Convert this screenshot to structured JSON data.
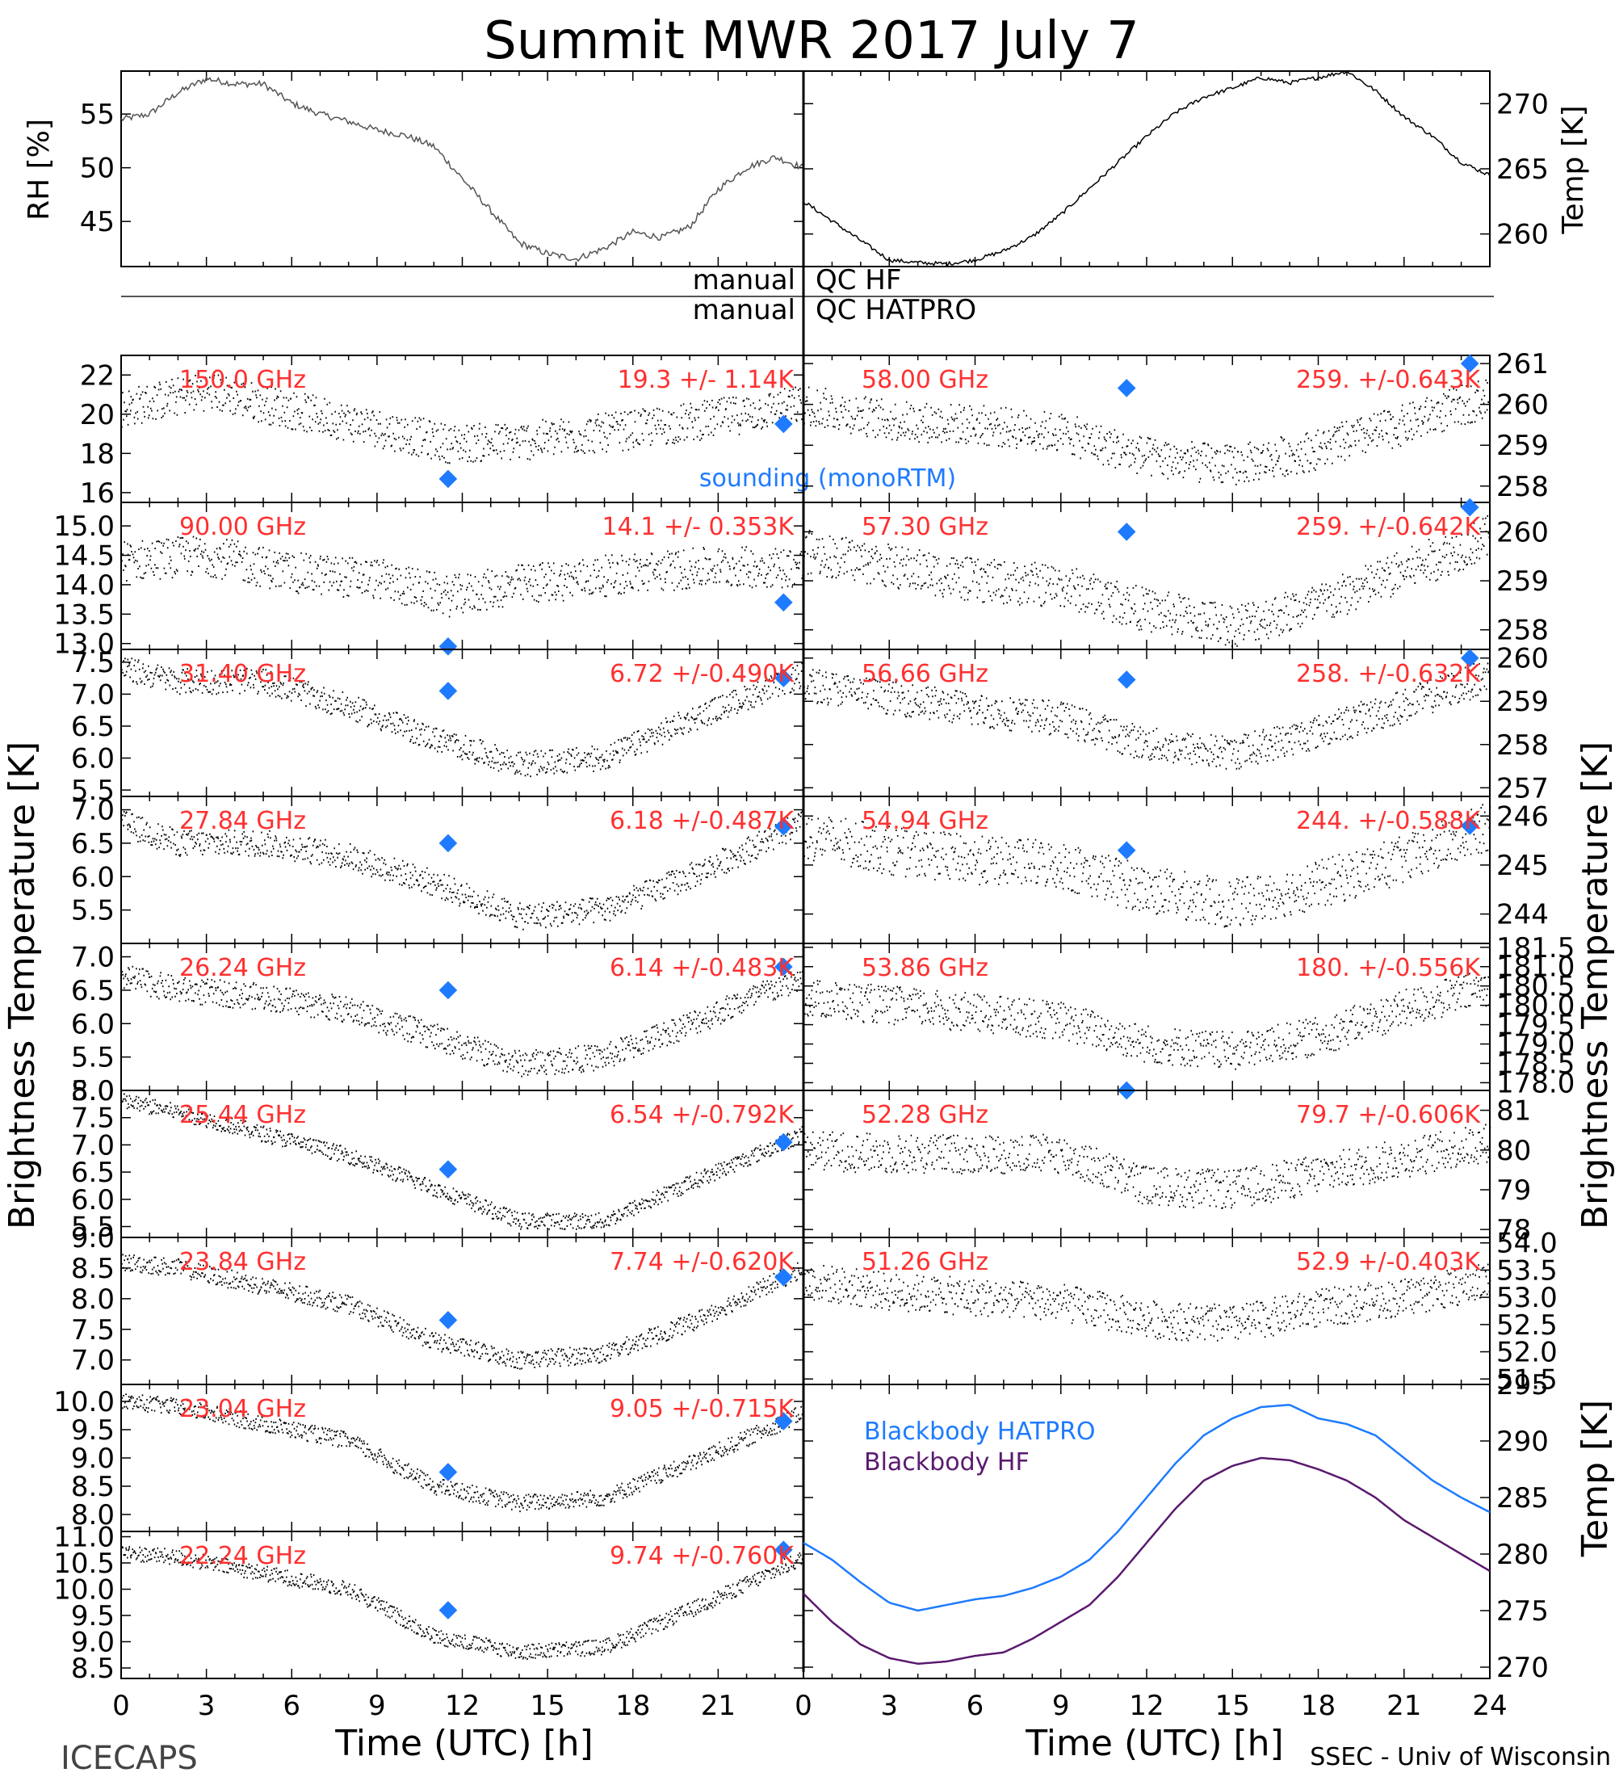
{
  "title": "Summit MWR 2017 July  7",
  "top_panels": {
    "left": {
      "ylabel": "RH [%]"
    },
    "right": {
      "ylabel": "Temp [K]"
    }
  },
  "qc": {
    "rows": [
      {
        "left": "manual",
        "right": "QC HF"
      },
      {
        "left": "manual",
        "right": "QC HATPRO"
      }
    ]
  },
  "axis_labels": {
    "brightness_left": "Brightness Temperature [K]",
    "brightness_right": "Brightness Temperature [K]",
    "bb_right": "Temp [K]",
    "xlabel_left": "Time (UTC) [h]",
    "xlabel_right": "Time (UTC) [h]"
  },
  "legend": {
    "sounding": "sounding (monoRTM)",
    "bb_hatpro": "Blackbody HATPRO",
    "bb_hf": "Blackbody HF"
  },
  "footer": {
    "left": "ICECAPS",
    "right": "SSEC - Univ of Wisconsin"
  },
  "colors": {
    "data": "#000000",
    "label": "#ff3030",
    "sounding": "#1e7bff",
    "bb_hatpro": "#1e7bff",
    "bb_hf": "#5a1a6e"
  },
  "chart_data": [
    {
      "type": "line",
      "panel": "rh",
      "ylabel": "RH [%]",
      "xlim": [
        0,
        24
      ],
      "ylim": [
        40.8,
        59
      ],
      "yticks": [
        45,
        50,
        55
      ],
      "x": [
        0,
        1,
        2,
        3,
        4,
        5,
        6,
        7,
        8,
        9,
        10,
        11,
        12,
        13,
        14,
        15,
        16,
        17,
        18,
        19,
        20,
        21,
        22,
        23,
        24
      ],
      "y": [
        54.5,
        55,
        57,
        58.3,
        57.8,
        57.8,
        56,
        55,
        54.3,
        53.5,
        53,
        52,
        49,
        46,
        43,
        42,
        41.5,
        42.5,
        44,
        43.5,
        44.5,
        48,
        50,
        51,
        50
      ]
    },
    {
      "type": "line",
      "panel": "temp",
      "ylabel": "Temp [K]",
      "xlim": [
        0,
        24
      ],
      "ylim": [
        257.5,
        272.5
      ],
      "yticks": [
        260,
        265,
        270
      ],
      "x": [
        0,
        1,
        2,
        3,
        4,
        5,
        6,
        7,
        8,
        9,
        10,
        11,
        12,
        13,
        14,
        15,
        16,
        17,
        18,
        19,
        20,
        21,
        22,
        23,
        24
      ],
      "y": [
        262.5,
        261,
        259.5,
        258,
        257.8,
        257.7,
        258,
        258.7,
        259.8,
        261.5,
        263.5,
        265.5,
        267.5,
        269.3,
        270.5,
        271.2,
        272,
        271.6,
        272,
        272.5,
        271,
        269,
        267.5,
        265.5,
        264.5
      ]
    },
    {
      "type": "scatter",
      "panel": "left",
      "channel": "150.0 GHz",
      "stat": "19.3 +/- 1.14K",
      "ylim": [
        15.5,
        23
      ],
      "yticks": [
        16,
        18,
        20,
        22
      ],
      "xlim": [
        0,
        24
      ],
      "trend": {
        "x": [
          0,
          3,
          6,
          9,
          11.5,
          14,
          18,
          21,
          24
        ],
        "y": [
          20.3,
          21.2,
          20.2,
          19.3,
          18.5,
          18.6,
          19.2,
          19.8,
          20.5
        ]
      },
      "noise": 1.0,
      "sounding": [
        [
          11.5,
          16.7
        ],
        [
          23.3,
          19.5
        ]
      ]
    },
    {
      "type": "scatter",
      "panel": "left",
      "channel": "90.00 GHz",
      "stat": "14.1 +/- 0.353K",
      "ylim": [
        12.9,
        15.4
      ],
      "yticks": [
        13.0,
        13.5,
        14.0,
        14.5,
        15.0
      ],
      "xlim": [
        0,
        24
      ],
      "trend": {
        "x": [
          0,
          3,
          6,
          9,
          11.5,
          14,
          18,
          21,
          24
        ],
        "y": [
          14.4,
          14.5,
          14.2,
          14.1,
          13.8,
          14.0,
          14.2,
          14.3,
          14.3
        ]
      },
      "noise": 0.35,
      "sounding": [
        [
          11.5,
          12.95
        ],
        [
          23.3,
          13.7
        ]
      ]
    },
    {
      "type": "scatter",
      "panel": "left",
      "channel": "31.40 GHz",
      "stat": "6.72 +/-0.490K",
      "ylim": [
        5.4,
        7.7
      ],
      "yticks": [
        5.5,
        6.0,
        6.5,
        7.0,
        7.5
      ],
      "xlim": [
        0,
        24
      ],
      "trend": {
        "x": [
          0,
          2,
          5,
          8,
          11,
          14,
          17,
          20,
          24
        ],
        "y": [
          7.4,
          7.2,
          7.2,
          6.8,
          6.3,
          5.9,
          6.0,
          6.6,
          7.3
        ]
      },
      "noise": 0.2,
      "sounding": [
        [
          11.5,
          7.05
        ],
        [
          23.3,
          7.25
        ]
      ]
    },
    {
      "type": "scatter",
      "panel": "left",
      "channel": "27.84 GHz",
      "stat": "6.18 +/-0.487K",
      "ylim": [
        5.0,
        7.2
      ],
      "yticks": [
        5.5,
        6.0,
        6.5,
        7.0
      ],
      "xlim": [
        0,
        24
      ],
      "trend": {
        "x": [
          0,
          2,
          5,
          8,
          11,
          14,
          17,
          20,
          24
        ],
        "y": [
          6.8,
          6.5,
          6.5,
          6.3,
          5.9,
          5.4,
          5.5,
          6.0,
          6.8
        ]
      },
      "noise": 0.2,
      "sounding": [
        [
          11.5,
          6.5
        ],
        [
          23.3,
          6.75
        ]
      ]
    },
    {
      "type": "scatter",
      "panel": "left",
      "channel": "26.24 GHz",
      "stat": "6.14 +/-0.483K",
      "ylim": [
        5.0,
        7.2
      ],
      "yticks": [
        5.0,
        5.5,
        6.0,
        6.5,
        7.0
      ],
      "xlim": [
        0,
        24
      ],
      "trend": {
        "x": [
          0,
          2,
          5,
          8,
          11,
          14,
          17,
          20,
          24
        ],
        "y": [
          6.7,
          6.5,
          6.4,
          6.2,
          5.8,
          5.4,
          5.5,
          6.0,
          6.7
        ]
      },
      "noise": 0.2,
      "sounding": [
        [
          11.5,
          6.5
        ],
        [
          23.3,
          6.85
        ]
      ]
    },
    {
      "type": "scatter",
      "panel": "left",
      "channel": "25.44 GHz",
      "stat": "6.54 +/-0.792K",
      "ylim": [
        5.3,
        8.0
      ],
      "yticks": [
        5.5,
        6.0,
        6.5,
        7.0,
        7.5,
        8.0
      ],
      "xlim": [
        0,
        24
      ],
      "trend": {
        "x": [
          0,
          2,
          5,
          8,
          11,
          14,
          17,
          20,
          24
        ],
        "y": [
          7.8,
          7.6,
          7.2,
          6.8,
          6.2,
          5.6,
          5.6,
          6.3,
          7.2
        ]
      },
      "noise": 0.15,
      "sounding": [
        [
          11.5,
          6.55
        ],
        [
          23.3,
          7.05
        ]
      ]
    },
    {
      "type": "scatter",
      "panel": "left",
      "channel": "23.84 GHz",
      "stat": "7.74 +/-0.620K",
      "ylim": [
        6.6,
        9.0
      ],
      "yticks": [
        7.0,
        7.5,
        8.0,
        8.5,
        9.0
      ],
      "xlim": [
        0,
        24
      ],
      "trend": {
        "x": [
          0,
          2,
          5,
          8,
          11,
          14,
          17,
          20,
          24
        ],
        "y": [
          8.6,
          8.5,
          8.2,
          7.9,
          7.3,
          7.0,
          7.1,
          7.6,
          8.5
        ]
      },
      "noise": 0.15,
      "sounding": [
        [
          11.5,
          7.65
        ],
        [
          23.3,
          8.35
        ]
      ]
    },
    {
      "type": "scatter",
      "panel": "left",
      "channel": "23.04 GHz",
      "stat": "9.05 +/-0.715K",
      "ylim": [
        7.7,
        10.3
      ],
      "yticks": [
        8.0,
        8.5,
        9.0,
        9.5,
        10.0
      ],
      "xlim": [
        0,
        24
      ],
      "trend": {
        "x": [
          0,
          2,
          5,
          8,
          11,
          14,
          17,
          20,
          24
        ],
        "y": [
          10.0,
          9.9,
          9.6,
          9.3,
          8.5,
          8.2,
          8.3,
          8.9,
          9.8
        ]
      },
      "noise": 0.15,
      "sounding": [
        [
          11.5,
          8.75
        ],
        [
          23.3,
          9.65
        ]
      ]
    },
    {
      "type": "scatter",
      "panel": "left",
      "channel": "22.24 GHz",
      "stat": "9.74 +/-0.760K",
      "ylim": [
        8.3,
        11.1
      ],
      "yticks": [
        8.5,
        9.0,
        9.5,
        10.0,
        10.5,
        11.0
      ],
      "xlim": [
        0,
        24
      ],
      "trend": {
        "x": [
          0,
          2,
          5,
          8,
          11,
          14,
          17,
          20,
          24
        ],
        "y": [
          10.7,
          10.6,
          10.3,
          10.0,
          9.1,
          8.8,
          8.9,
          9.6,
          10.6
        ]
      },
      "noise": 0.15,
      "sounding": [
        [
          11.5,
          9.6
        ],
        [
          23.3,
          10.75
        ]
      ]
    },
    {
      "type": "scatter",
      "panel": "right",
      "channel": "58.00 GHz",
      "stat": "259. +/-0.643K",
      "ylim": [
        257.6,
        261.2
      ],
      "yticks": [
        258,
        259,
        260,
        261
      ],
      "xlim": [
        0,
        24
      ],
      "trend": {
        "x": [
          0,
          3,
          6,
          9,
          12,
          15,
          18,
          21,
          24
        ],
        "y": [
          260.0,
          259.6,
          259.5,
          259.3,
          258.7,
          258.5,
          258.9,
          259.5,
          260.2
        ]
      },
      "noise": 0.5,
      "sounding": [
        [
          11.3,
          260.4
        ],
        [
          23.3,
          261.0
        ]
      ]
    },
    {
      "type": "scatter",
      "panel": "right",
      "channel": "57.30 GHz",
      "stat": "259. +/-0.642K",
      "ylim": [
        257.6,
        260.6
      ],
      "yticks": [
        258,
        259,
        260
      ],
      "xlim": [
        0,
        24
      ],
      "trend": {
        "x": [
          0,
          3,
          6,
          9,
          12,
          15,
          18,
          21,
          24
        ],
        "y": [
          259.6,
          259.3,
          259.0,
          258.9,
          258.4,
          258.1,
          258.5,
          259.2,
          259.9
        ]
      },
      "noise": 0.45,
      "sounding": [
        [
          11.3,
          260.0
        ],
        [
          23.3,
          260.5
        ]
      ]
    },
    {
      "type": "scatter",
      "panel": "right",
      "channel": "56.66 GHz",
      "stat": "258. +/-0.632K",
      "ylim": [
        256.8,
        260.2
      ],
      "yticks": [
        257,
        258,
        259,
        260
      ],
      "xlim": [
        0,
        24
      ],
      "trend": {
        "x": [
          0,
          3,
          6,
          9,
          12,
          15,
          18,
          21,
          24
        ],
        "y": [
          259.4,
          259.1,
          258.8,
          258.6,
          258.0,
          257.8,
          258.3,
          258.9,
          259.6
        ]
      },
      "noise": 0.4,
      "sounding": [
        [
          11.3,
          259.5
        ],
        [
          23.3,
          260.0
        ]
      ]
    },
    {
      "type": "scatter",
      "panel": "right",
      "channel": "54.94 GHz",
      "stat": "244. +/-0.588K",
      "ylim": [
        243.4,
        246.4
      ],
      "yticks": [
        244,
        245,
        246
      ],
      "xlim": [
        0,
        24
      ],
      "trend": {
        "x": [
          0,
          3,
          6,
          9,
          12,
          15,
          18,
          21,
          24
        ],
        "y": [
          245.6,
          245.3,
          245.1,
          245.0,
          244.5,
          244.2,
          244.6,
          245.1,
          245.8
        ]
      },
      "noise": 0.5,
      "sounding": [
        [
          11.3,
          245.3
        ],
        [
          23.3,
          245.8
        ]
      ]
    },
    {
      "type": "scatter",
      "panel": "right",
      "channel": "53.86 GHz",
      "stat": "180. +/-0.556K",
      "ylim": [
        177.8,
        181.6
      ],
      "yticks": [
        178.0,
        178.5,
        179.0,
        179.5,
        180.0,
        180.5,
        181.0,
        181.5
      ],
      "xlim": [
        0,
        24
      ],
      "trend": {
        "x": [
          0,
          3,
          6,
          9,
          12,
          15,
          18,
          21,
          24
        ],
        "y": [
          180.2,
          180.0,
          179.8,
          179.6,
          179.0,
          178.8,
          179.2,
          179.9,
          180.5
        ]
      },
      "noise": 0.5,
      "sounding": [
        [
          11.3,
          177.8
        ]
      ]
    },
    {
      "type": "scatter",
      "panel": "right",
      "channel": "52.28 GHz",
      "stat": "79.7 +/-0.606K",
      "ylim": [
        77.8,
        81.5
      ],
      "yticks": [
        78,
        79,
        80,
        81
      ],
      "xlim": [
        0,
        24
      ],
      "trend": {
        "x": [
          0,
          3,
          6,
          9,
          12,
          15,
          18,
          21,
          24
        ],
        "y": [
          80.0,
          79.9,
          79.9,
          79.9,
          79.1,
          79.0,
          79.4,
          79.8,
          80.2
        ]
      },
      "noise": 0.5,
      "sounding": []
    },
    {
      "type": "scatter",
      "panel": "right",
      "channel": "51.26 GHz",
      "stat": "52.9 +/-0.403K",
      "ylim": [
        51.4,
        54.1
      ],
      "yticks": [
        51.5,
        52.0,
        52.5,
        53.0,
        53.5,
        54.0
      ],
      "xlim": [
        0,
        24
      ],
      "trend": {
        "x": [
          0,
          3,
          6,
          9,
          12,
          15,
          18,
          21,
          24
        ],
        "y": [
          53.3,
          53.1,
          53.0,
          52.9,
          52.6,
          52.5,
          52.8,
          53.0,
          53.3
        ]
      },
      "noise": 0.35,
      "sounding": []
    },
    {
      "type": "line",
      "panel": "bb",
      "ylabel": "Temp [K]",
      "xlim": [
        0,
        24
      ],
      "ylim": [
        269,
        295
      ],
      "yticks": [
        270,
        275,
        280,
        285,
        290,
        295
      ],
      "xticks": [
        0,
        3,
        6,
        9,
        12,
        15,
        18,
        21,
        24
      ],
      "series": [
        {
          "name": "Blackbody HATPRO",
          "x": [
            0,
            1,
            2,
            3,
            4,
            5,
            6,
            7,
            8,
            9,
            10,
            11,
            12,
            13,
            14,
            15,
            16,
            17,
            18,
            19,
            20,
            21,
            22,
            23,
            24
          ],
          "y": [
            281,
            279.5,
            277.5,
            275.7,
            275,
            275.5,
            276,
            276.3,
            277,
            278,
            279.5,
            282,
            285,
            288,
            290.5,
            292,
            293,
            293.2,
            292,
            291.5,
            290.5,
            288.5,
            286.5,
            285,
            283.7
          ]
        },
        {
          "name": "Blackbody HF",
          "x": [
            0,
            1,
            2,
            3,
            4,
            5,
            6,
            7,
            8,
            9,
            10,
            11,
            12,
            13,
            14,
            15,
            16,
            17,
            18,
            19,
            20,
            21,
            22,
            23,
            24
          ],
          "y": [
            276.5,
            274,
            272,
            270.8,
            270.3,
            270.5,
            271,
            271.3,
            272.5,
            274,
            275.5,
            278,
            281,
            284,
            286.5,
            287.8,
            288.5,
            288.3,
            287.5,
            286.5,
            285,
            283,
            281.5,
            280,
            278.5
          ]
        }
      ]
    }
  ]
}
